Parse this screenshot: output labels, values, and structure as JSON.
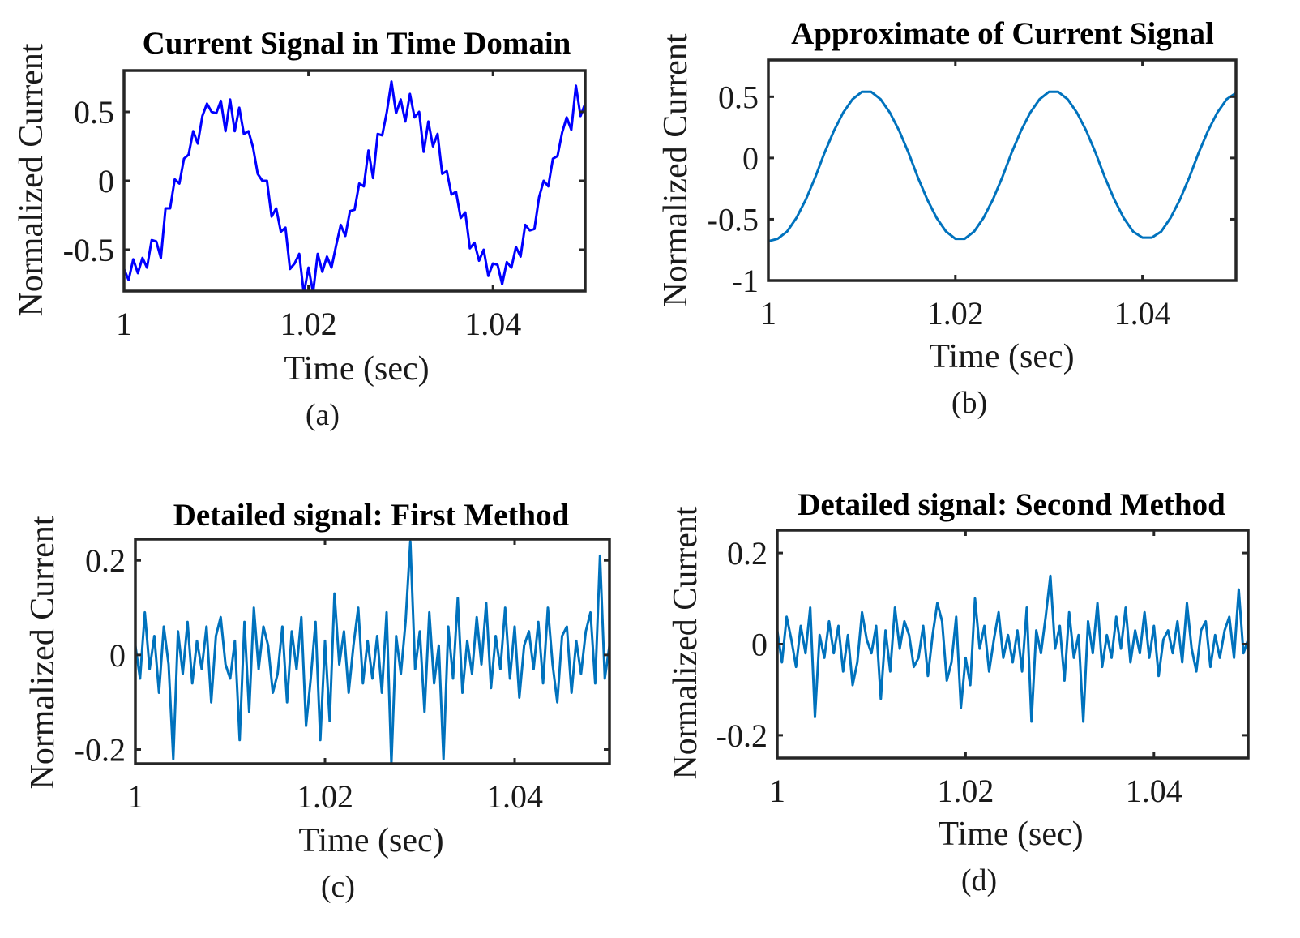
{
  "chart_data": [
    {
      "type": "line",
      "panel": "a",
      "title": "Current Signal in Time Domain",
      "xlabel": "Time (sec)",
      "ylabel": "Normalized Current",
      "caption": "(a)",
      "xlim": [
        1,
        1.05
      ],
      "ylim": [
        -0.8,
        0.8
      ],
      "xticks": [
        1,
        1.02,
        1.04
      ],
      "xtick_labels": [
        "1",
        "1.02",
        "1.04"
      ],
      "yticks": [
        -0.5,
        0,
        0.5
      ],
      "ytick_labels": [
        "-0.5",
        "0",
        "0.5"
      ],
      "grid": false,
      "color": "#0000FF",
      "x_start": 1,
      "x_step": 0.0005,
      "y": [
        -0.64,
        -0.72,
        -0.57,
        -0.67,
        -0.56,
        -0.63,
        -0.43,
        -0.44,
        -0.56,
        -0.2,
        -0.2,
        0.01,
        -0.02,
        0.16,
        0.19,
        0.36,
        0.27,
        0.47,
        0.56,
        0.5,
        0.49,
        0.58,
        0.36,
        0.59,
        0.36,
        0.53,
        0.34,
        0.36,
        0.24,
        0.05,
        0.0,
        0.0,
        -0.26,
        -0.2,
        -0.37,
        -0.34,
        -0.64,
        -0.6,
        -0.53,
        -0.82,
        -0.63,
        -0.81,
        -0.53,
        -0.66,
        -0.55,
        -0.63,
        -0.47,
        -0.32,
        -0.4,
        -0.22,
        -0.21,
        -0.02,
        -0.04,
        0.22,
        0.02,
        0.34,
        0.33,
        0.5,
        0.72,
        0.49,
        0.59,
        0.43,
        0.63,
        0.46,
        0.5,
        0.21,
        0.43,
        0.25,
        0.34,
        0.05,
        0.07,
        -0.1,
        -0.08,
        -0.27,
        -0.23,
        -0.49,
        -0.45,
        -0.58,
        -0.5,
        -0.69,
        -0.6,
        -0.61,
        -0.75,
        -0.59,
        -0.63,
        -0.48,
        -0.55,
        -0.32,
        -0.36,
        -0.35,
        -0.12,
        0.0,
        -0.04,
        0.16,
        0.18,
        0.35,
        0.46,
        0.37,
        0.69,
        0.47,
        0.56
      ]
    },
    {
      "type": "line",
      "panel": "b",
      "title": "Approximate of Current Signal",
      "xlabel": "Time (sec)",
      "ylabel": "Normalized Current",
      "caption": "(b)",
      "xlim": [
        1,
        1.05
      ],
      "ylim": [
        -1,
        0.8
      ],
      "xticks": [
        1,
        1.02,
        1.04
      ],
      "xtick_labels": [
        "1",
        "1.02",
        "1.04"
      ],
      "yticks": [
        -1,
        -0.5,
        0,
        0.5
      ],
      "ytick_labels": [
        "-1",
        "-0.5",
        "0",
        "0.5"
      ],
      "grid": false,
      "color": "#0072BD",
      "x_start": 1,
      "x_step": 0.001,
      "y": [
        -0.68,
        -0.66,
        -0.6,
        -0.49,
        -0.34,
        -0.16,
        0.04,
        0.22,
        0.37,
        0.48,
        0.54,
        0.54,
        0.48,
        0.37,
        0.22,
        0.04,
        -0.16,
        -0.34,
        -0.49,
        -0.6,
        -0.66,
        -0.66,
        -0.6,
        -0.49,
        -0.34,
        -0.16,
        0.04,
        0.22,
        0.37,
        0.48,
        0.54,
        0.54,
        0.48,
        0.37,
        0.22,
        0.04,
        -0.16,
        -0.34,
        -0.49,
        -0.6,
        -0.65,
        -0.65,
        -0.6,
        -0.49,
        -0.34,
        -0.16,
        0.04,
        0.22,
        0.37,
        0.48,
        0.53
      ]
    },
    {
      "type": "line",
      "panel": "c",
      "title": "Detailed signal:  First Method",
      "xlabel": "Time (sec)",
      "ylabel": "Normalized Current",
      "caption": "(c)",
      "xlim": [
        1,
        1.05
      ],
      "ylim": [
        -0.23,
        0.245
      ],
      "xticks": [
        1,
        1.02,
        1.04
      ],
      "xtick_labels": [
        "1",
        "1.02",
        "1.04"
      ],
      "yticks": [
        -0.2,
        0,
        0.2
      ],
      "ytick_labels": [
        "-0.2",
        "0",
        "0.2"
      ],
      "grid": false,
      "color": "#0072BD",
      "x_start": 1,
      "x_step": 0.0005,
      "y": [
        0.02,
        -0.05,
        0.09,
        -0.03,
        0.04,
        -0.08,
        0.06,
        -0.02,
        -0.22,
        0.05,
        -0.04,
        0.07,
        -0.06,
        0.03,
        -0.03,
        0.06,
        -0.1,
        0.04,
        0.08,
        -0.02,
        -0.05,
        0.03,
        -0.18,
        0.07,
        -0.12,
        0.1,
        -0.03,
        0.06,
        0.02,
        -0.08,
        -0.04,
        0.06,
        -0.1,
        0.05,
        -0.03,
        0.08,
        -0.15,
        -0.05,
        0.07,
        -0.18,
        0.03,
        -0.14,
        0.13,
        -0.02,
        0.05,
        -0.08,
        0.02,
        0.1,
        -0.06,
        0.03,
        -0.05,
        0.04,
        -0.08,
        0.09,
        -0.23,
        0.04,
        -0.04,
        0.07,
        0.24,
        -0.03,
        0.05,
        -0.12,
        0.09,
        -0.06,
        0.02,
        -0.22,
        0.06,
        -0.05,
        0.12,
        -0.08,
        0.03,
        -0.04,
        0.08,
        -0.02,
        0.11,
        -0.07,
        0.04,
        -0.03,
        0.1,
        -0.05,
        0.06,
        -0.09,
        0.02,
        0.05,
        -0.03,
        0.07,
        -0.06,
        0.1,
        -0.02,
        -0.1,
        0.04,
        0.06,
        -0.08,
        0.03,
        -0.04,
        0.05,
        0.09,
        -0.06,
        0.21,
        -0.05,
        0.02
      ]
    },
    {
      "type": "line",
      "panel": "d",
      "title": "Detailed signal: Second Method",
      "xlabel": "Time (sec)",
      "ylabel": "Normalized Current",
      "caption": "(d)",
      "xlim": [
        1,
        1.05
      ],
      "ylim": [
        -0.25,
        0.25
      ],
      "xticks": [
        1,
        1.02,
        1.04
      ],
      "xtick_labels": [
        "1",
        "1.02",
        "1.04"
      ],
      "yticks": [
        -0.2,
        0,
        0.2
      ],
      "ytick_labels": [
        "-0.2",
        "0",
        "0.2"
      ],
      "grid": false,
      "color": "#0072BD",
      "x_start": 1,
      "x_step": 0.0005,
      "y": [
        0.03,
        -0.04,
        0.06,
        0.01,
        -0.05,
        0.04,
        -0.02,
        0.08,
        -0.16,
        0.02,
        -0.03,
        0.05,
        -0.02,
        0.04,
        -0.06,
        0.02,
        -0.09,
        -0.04,
        0.07,
        0.01,
        -0.02,
        0.04,
        -0.12,
        0.03,
        -0.06,
        0.08,
        -0.01,
        0.05,
        0.02,
        -0.05,
        -0.03,
        0.04,
        -0.07,
        0.02,
        0.09,
        0.05,
        -0.08,
        -0.04,
        0.06,
        -0.14,
        -0.03,
        -0.09,
        0.1,
        -0.01,
        0.04,
        -0.06,
        0.01,
        0.07,
        -0.03,
        0.02,
        -0.04,
        0.03,
        -0.06,
        0.08,
        -0.17,
        0.03,
        -0.02,
        0.06,
        0.15,
        -0.01,
        0.04,
        -0.08,
        0.07,
        -0.03,
        0.02,
        -0.17,
        0.05,
        -0.02,
        0.09,
        -0.05,
        0.02,
        -0.03,
        0.06,
        -0.01,
        0.08,
        -0.04,
        0.03,
        -0.02,
        0.07,
        -0.03,
        0.04,
        -0.07,
        0.01,
        0.03,
        -0.02,
        0.05,
        -0.04,
        0.09,
        -0.01,
        -0.06,
        0.03,
        0.05,
        -0.05,
        0.02,
        -0.03,
        0.03,
        0.06,
        -0.03,
        0.12,
        -0.02,
        0.01
      ]
    }
  ]
}
